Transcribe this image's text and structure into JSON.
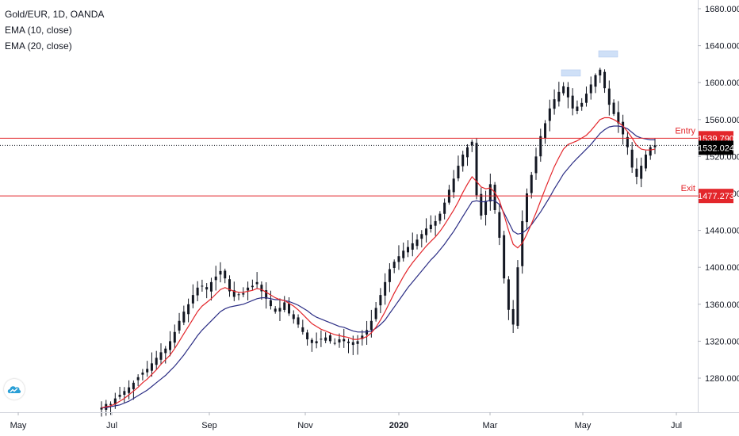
{
  "legend": {
    "symbol": "Gold/EUR, 1D, OANDA",
    "ema10": "EMA (10, close)",
    "ema20": "EMA (20, close)"
  },
  "colors": {
    "candle": "#131722",
    "ema10": "#e3262b",
    "ema20": "#2b2d84",
    "entry_line": "#e3262b",
    "exit_line": "#e3262b",
    "current_line": "#131722",
    "highlight": "#cfe0f7"
  },
  "icons": {
    "logo": "tradingview-cloud-icon"
  },
  "chart_data": {
    "type": "candlestick",
    "price_axis": {
      "ticks": [
        "1680.000",
        "1640.000",
        "1600.000",
        "1560.000",
        "1520.000",
        "1480.000",
        "1440.000",
        "1400.000",
        "1360.000",
        "1320.000",
        "1280.000"
      ],
      "range": [
        1248,
        1688
      ]
    },
    "time_axis": {
      "labels": [
        "May",
        "Jul",
        "Sep",
        "Nov",
        "2020",
        "Mar",
        "May",
        "Jul"
      ]
    },
    "levels": {
      "entry": {
        "label": "Entry",
        "value": 1539.79,
        "tag": "1539.790"
      },
      "current": {
        "value": 1532.024,
        "tag": "1532.024"
      },
      "exit": {
        "label": "Exit",
        "value": 1477.273,
        "tag": "1477.273"
      }
    },
    "closes": [
      1248,
      1252,
      1251,
      1258,
      1262,
      1266,
      1270,
      1275,
      1281,
      1286,
      1290,
      1296,
      1302,
      1308,
      1312,
      1320,
      1330,
      1342,
      1352,
      1360,
      1370,
      1378,
      1380,
      1376,
      1384,
      1390,
      1396,
      1388,
      1374,
      1368,
      1370,
      1372,
      1378,
      1380,
      1384,
      1374,
      1366,
      1358,
      1352,
      1356,
      1362,
      1350,
      1344,
      1338,
      1330,
      1322,
      1318,
      1320,
      1322,
      1324,
      1320,
      1318,
      1322,
      1320,
      1318,
      1316,
      1320,
      1326,
      1332,
      1342,
      1356,
      1370,
      1384,
      1398,
      1406,
      1412,
      1418,
      1422,
      1426,
      1430,
      1436,
      1442,
      1446,
      1450,
      1458,
      1470,
      1484,
      1496,
      1510,
      1522,
      1530,
      1536,
      1478,
      1456,
      1472,
      1490,
      1462,
      1432,
      1388,
      1354,
      1338,
      1400,
      1450,
      1480,
      1500,
      1520,
      1542,
      1556,
      1572,
      1582,
      1590,
      1596,
      1584,
      1572,
      1574,
      1578,
      1588,
      1598,
      1608,
      1614,
      1594,
      1576,
      1566,
      1556,
      1544,
      1530,
      1508,
      1498,
      1510,
      1522,
      1530,
      1532
    ],
    "ema10": [
      1248,
      1249,
      1250,
      1252,
      1255,
      1258,
      1262,
      1266,
      1270,
      1275,
      1279,
      1284,
      1289,
      1295,
      1300,
      1305,
      1312,
      1320,
      1328,
      1336,
      1344,
      1352,
      1358,
      1362,
      1366,
      1371,
      1376,
      1378,
      1376,
      1374,
      1373,
      1373,
      1374,
      1375,
      1377,
      1376,
      1373,
      1370,
      1367,
      1365,
      1364,
      1361,
      1358,
      1354,
      1349,
      1344,
      1339,
      1336,
      1333,
      1331,
      1329,
      1327,
      1326,
      1325,
      1324,
      1322,
      1322,
      1323,
      1325,
      1329,
      1335,
      1343,
      1352,
      1362,
      1372,
      1381,
      1390,
      1398,
      1405,
      1411,
      1417,
      1423,
      1428,
      1433,
      1439,
      1446,
      1454,
      1462,
      1471,
      1481,
      1490,
      1498,
      1493,
      1487,
      1485,
      1486,
      1481,
      1472,
      1457,
      1440,
      1425,
      1421,
      1426,
      1436,
      1447,
      1459,
      1472,
      1485,
      1497,
      1509,
      1519,
      1528,
      1533,
      1535,
      1537,
      1540,
      1543,
      1548,
      1554,
      1560,
      1562,
      1562,
      1560,
      1557,
      1553,
      1547,
      1540,
      1532,
      1528,
      1527,
      1527,
      1528
    ],
    "ema20": [
      1248,
      1248,
      1249,
      1250,
      1251,
      1253,
      1255,
      1258,
      1261,
      1264,
      1267,
      1271,
      1275,
      1279,
      1283,
      1288,
      1293,
      1299,
      1305,
      1312,
      1319,
      1326,
      1332,
      1337,
      1342,
      1347,
      1352,
      1355,
      1357,
      1358,
      1359,
      1360,
      1362,
      1364,
      1366,
      1367,
      1367,
      1366,
      1365,
      1365,
      1364,
      1363,
      1361,
      1359,
      1356,
      1353,
      1349,
      1346,
      1344,
      1342,
      1340,
      1338,
      1336,
      1335,
      1333,
      1331,
      1330,
      1330,
      1330,
      1331,
      1334,
      1338,
      1343,
      1350,
      1357,
      1364,
      1371,
      1378,
      1384,
      1390,
      1396,
      1402,
      1408,
      1413,
      1419,
      1425,
      1432,
      1439,
      1447,
      1455,
      1463,
      1471,
      1472,
      1471,
      1471,
      1473,
      1472,
      1468,
      1459,
      1449,
      1439,
      1436,
      1437,
      1441,
      1446,
      1453,
      1460,
      1468,
      1476,
      1485,
      1493,
      1501,
      1507,
      1513,
      1518,
      1523,
      1528,
      1533,
      1539,
      1545,
      1549,
      1552,
      1553,
      1553,
      1552,
      1550,
      1546,
      1542,
      1540,
      1539,
      1538,
      1538
    ]
  }
}
